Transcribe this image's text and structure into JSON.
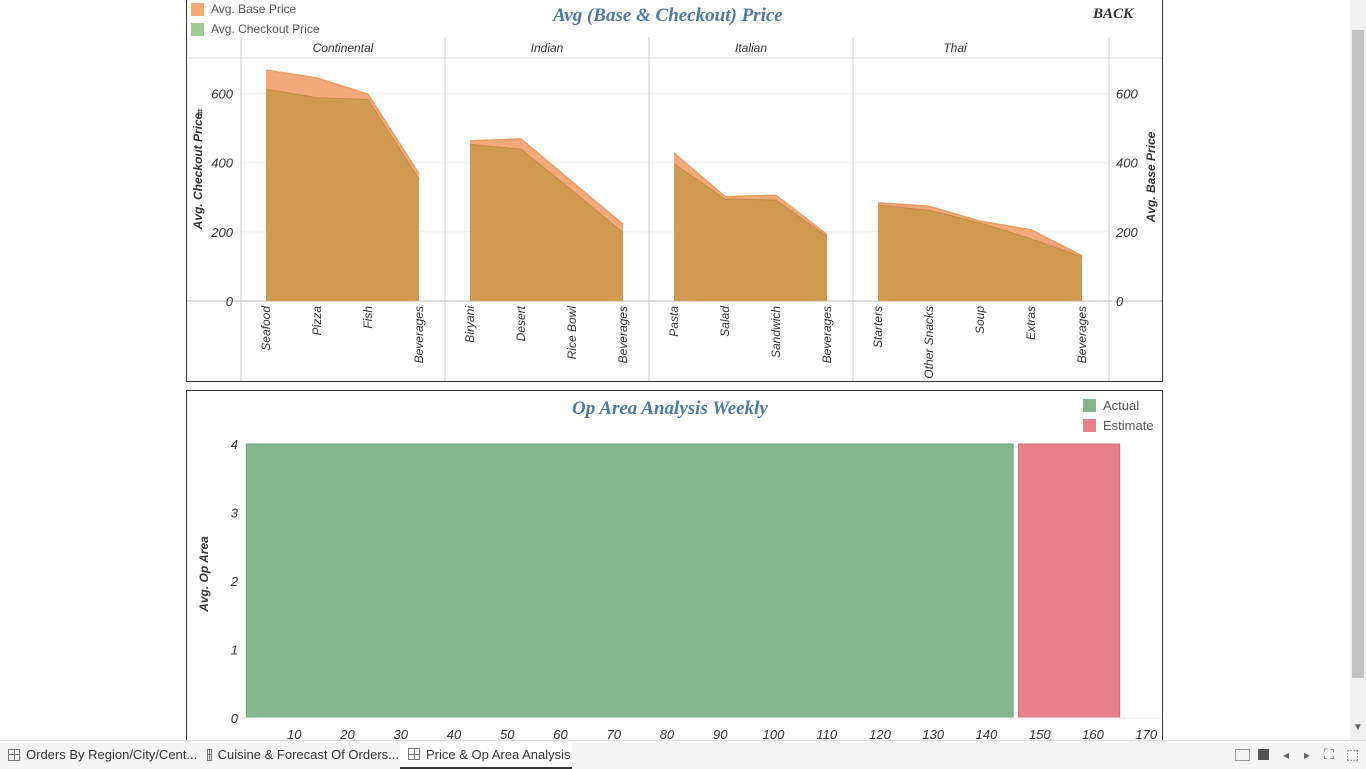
{
  "price_chart": {
    "title": "Avg (Base & Checkout) Price",
    "back_label": "BACK",
    "legend": [
      {
        "label": "Avg. Base Price",
        "color": "#f4a97a"
      },
      {
        "label": "Avg. Checkout Price",
        "color": "#9fcc95"
      }
    ],
    "left_axis_label": "Avg. Checkout Price",
    "right_axis_label": "Avg. Base Price",
    "y_ticks": [
      "0",
      "200",
      "400",
      "600"
    ]
  },
  "op_chart": {
    "title": "Op Area Analysis Weekly",
    "legend": [
      {
        "label": "Actual",
        "color": "#86b68e"
      },
      {
        "label": "Estimate",
        "color": "#e8808a"
      }
    ],
    "y_axis_label": "Avg. Op Area",
    "y_ticks": [
      "0",
      "1",
      "2",
      "3",
      "4"
    ],
    "x_ticks": [
      "10",
      "20",
      "30",
      "40",
      "50",
      "60",
      "70",
      "80",
      "90",
      "100",
      "110",
      "120",
      "130",
      "140",
      "150",
      "160",
      "170"
    ]
  },
  "chart_data": [
    {
      "type": "area",
      "title": "Avg (Base & Checkout) Price",
      "ylabel": "Avg. Checkout Price",
      "ylabel_right": "Avg. Base Price",
      "ylim": [
        0,
        700
      ],
      "legend_position": "top-left",
      "panels": [
        {
          "name": "Continental",
          "categories": [
            "Seafood",
            "Pizza",
            "Fish",
            "Beverages"
          ],
          "base_price": [
            668,
            645,
            598,
            368
          ],
          "checkout_price": [
            613,
            588,
            583,
            352
          ]
        },
        {
          "name": "Indian",
          "categories": [
            "Biryani",
            "Desert",
            "Rice Bowl",
            "Beverages"
          ],
          "base_price": [
            463,
            469,
            345,
            222
          ],
          "checkout_price": [
            453,
            439,
            320,
            198
          ]
        },
        {
          "name": "Italian",
          "categories": [
            "Pasta",
            "Salad",
            "Sandwich",
            "Beverages"
          ],
          "base_price": [
            428,
            302,
            306,
            192
          ],
          "checkout_price": [
            397,
            295,
            292,
            186
          ]
        },
        {
          "name": "Thai",
          "categories": [
            "Starters",
            "Other Snacks",
            "Soup",
            "Extras",
            "Beverages"
          ],
          "base_price": [
            284,
            274,
            231,
            206,
            131
          ],
          "checkout_price": [
            278,
            262,
            226,
            180,
            128
          ]
        }
      ]
    },
    {
      "type": "area",
      "title": "Op Area Analysis Weekly",
      "ylabel": "Avg. Op Area",
      "xlim": [
        0,
        170
      ],
      "ylim": [
        0,
        4
      ],
      "legend_position": "top-right",
      "series": [
        {
          "name": "Actual",
          "x": [
            1,
            145
          ],
          "values": [
            4.0,
            4.0
          ]
        },
        {
          "name": "Estimate",
          "x": [
            146,
            165
          ],
          "values": [
            4.0,
            4.0
          ]
        }
      ]
    }
  ],
  "tabs": [
    {
      "label": "Orders By Region/City/Cent...",
      "active": false
    },
    {
      "label": "Cuisine & Forecast Of Orders...",
      "active": false
    },
    {
      "label": "Price & Op Area Analysis",
      "active": true
    }
  ],
  "controls": {
    "view_icon": "grid-view-icon",
    "stop_icon": "stop-icon",
    "prev_icon": "prev-icon",
    "next_icon": "next-icon",
    "fullscreen_icon": "fullscreen-icon",
    "present_icon": "presentation-icon",
    "prev_glyph": "◂",
    "next_glyph": "▸",
    "fullscreen_glyph": "⛶",
    "present_glyph": "⬚"
  }
}
